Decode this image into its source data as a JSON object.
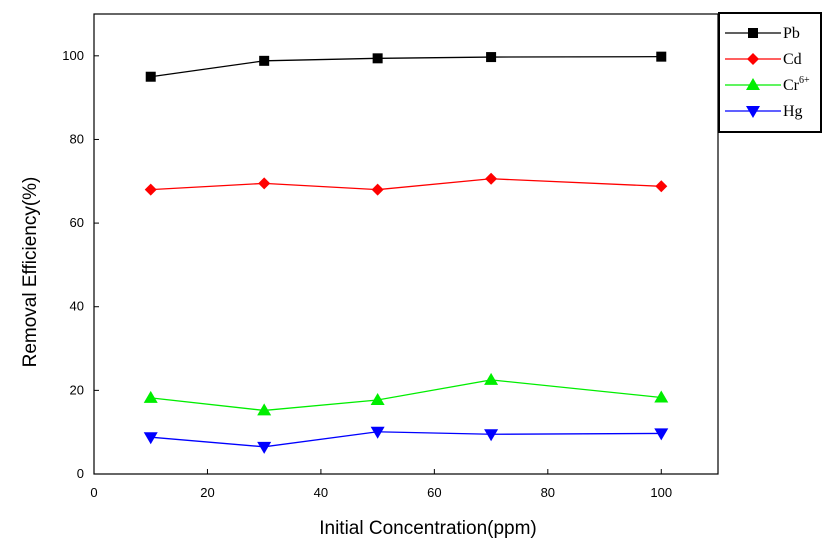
{
  "chart_data": {
    "type": "line",
    "title": "",
    "xlabel": "Initial Concentration(ppm)",
    "ylabel": "Removal Efficiency(%)",
    "xlim": [
      0,
      110
    ],
    "ylim": [
      0,
      110
    ],
    "xticks": [
      0,
      20,
      40,
      60,
      80,
      100
    ],
    "yticks": [
      0,
      20,
      40,
      60,
      80,
      100
    ],
    "grid": false,
    "legend_position": "top-right",
    "x": [
      10,
      30,
      50,
      70,
      100
    ],
    "series": [
      {
        "name": "Pb",
        "sup": "",
        "color": "#000000",
        "marker": "square",
        "values": [
          95,
          98.8,
          99.4,
          99.7,
          99.8
        ]
      },
      {
        "name": "Cd",
        "sup": "",
        "color": "#ff0000",
        "marker": "diamond",
        "values": [
          68,
          69.5,
          68,
          70.6,
          68.8
        ]
      },
      {
        "name": "Cr",
        "sup": "6+",
        "color": "#00ee00",
        "marker": "triangle-up",
        "values": [
          18.2,
          15.2,
          17.7,
          22.5,
          18.3
        ]
      },
      {
        "name": "Hg",
        "sup": "",
        "color": "#0000ff",
        "marker": "triangle-down",
        "values": [
          8.8,
          6.5,
          10.1,
          9.5,
          9.7
        ]
      }
    ]
  }
}
